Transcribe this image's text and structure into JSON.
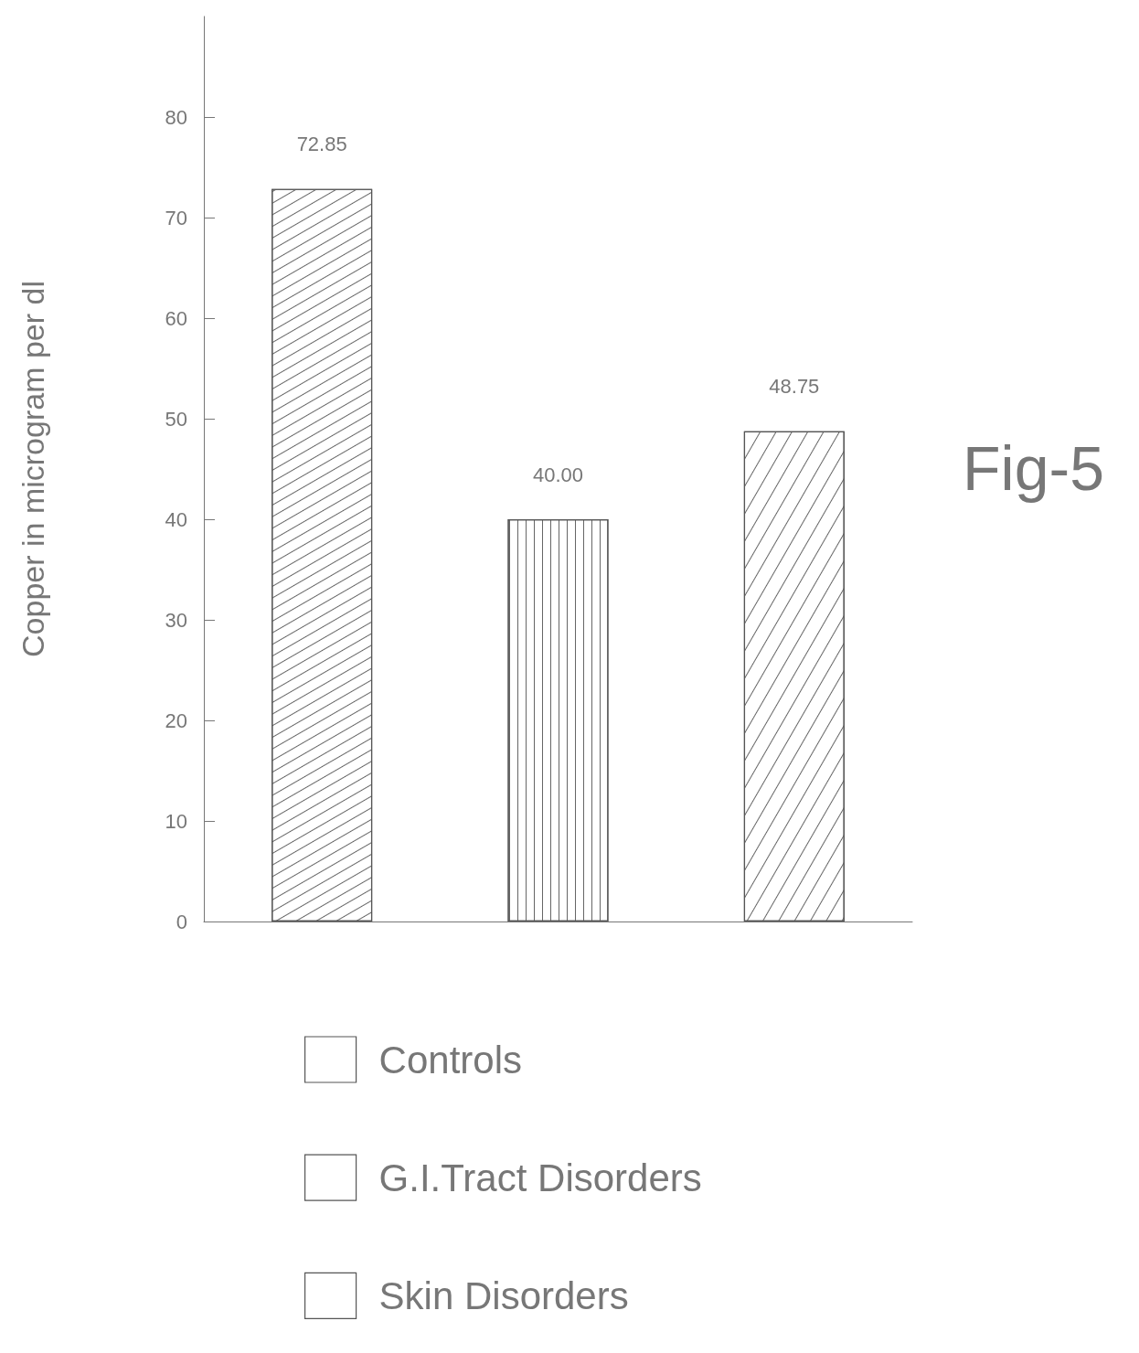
{
  "chart_data": {
    "type": "bar",
    "ylabel": "Copper in microgram per dl",
    "categories": [
      null,
      null,
      null
    ],
    "series": [
      {
        "name": "Controls",
        "color": "#ffffff",
        "values": [
          72.85,
          null,
          null
        ],
        "value_labels": [
          "72.85",
          null,
          null
        ]
      },
      {
        "name": "G.I.Tract Disorders",
        "color": "#ffffff",
        "values": [
          null,
          40.0,
          null
        ],
        "value_labels": [
          null,
          "40.00",
          null
        ]
      },
      {
        "name": "Skin Disorders",
        "color": "#ffffff",
        "values": [
          null,
          null,
          48.75
        ],
        "value_labels": [
          null,
          null,
          "48.75"
        ]
      }
    ],
    "ylim": [
      0,
      90
    ],
    "yticks": [
      0,
      10,
      20,
      30,
      40,
      50,
      60,
      70,
      80
    ],
    "grid": false,
    "legend": "bottom",
    "annotations": [
      "Fig-5"
    ]
  }
}
